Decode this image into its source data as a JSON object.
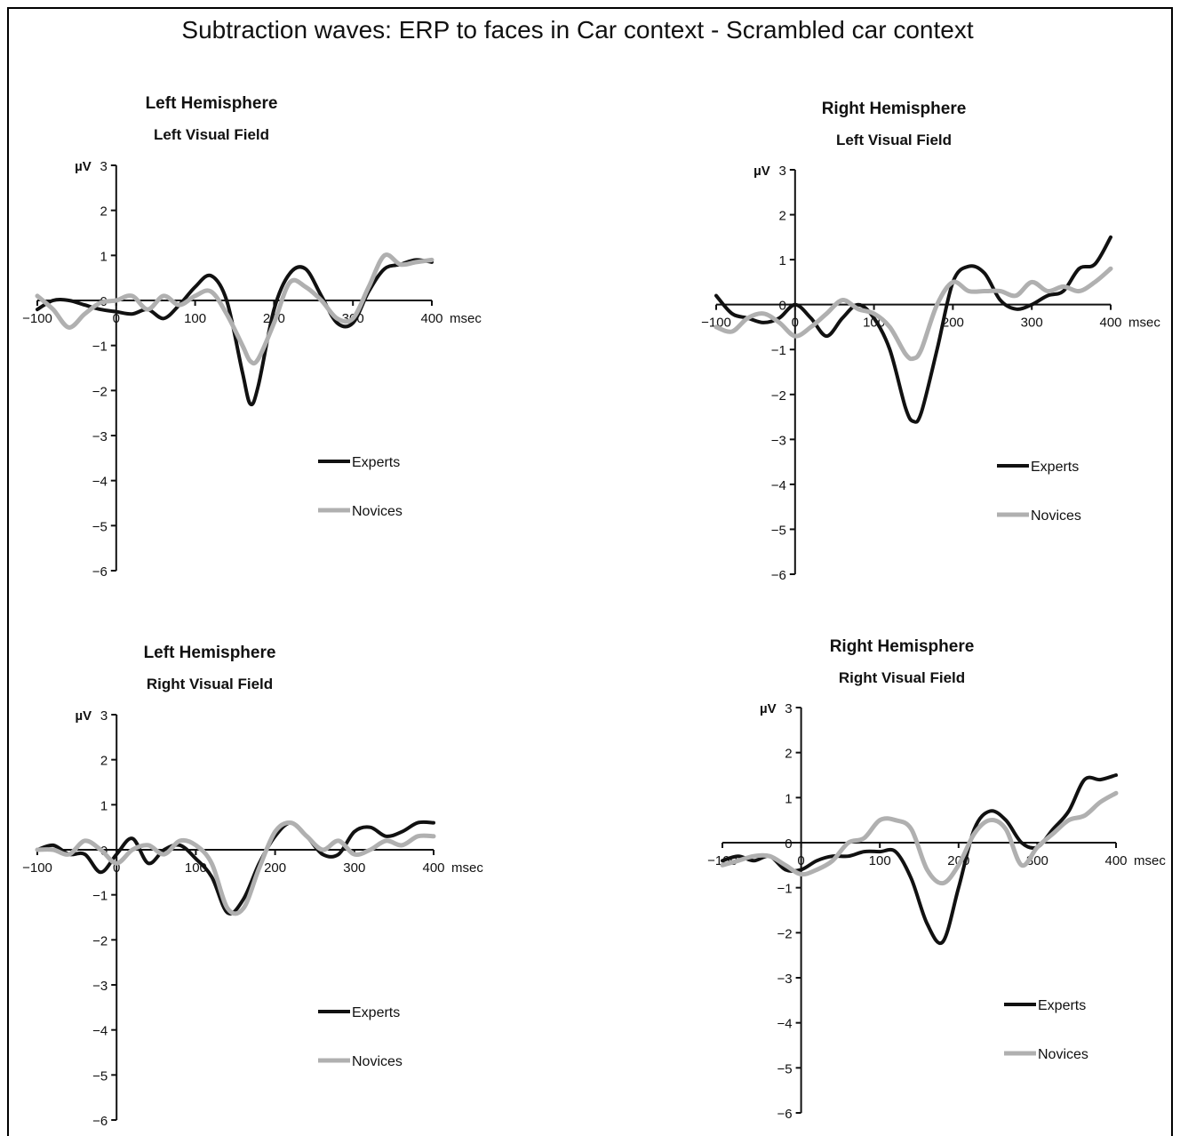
{
  "figure": {
    "title": "Subtraction waves: ERP to faces in Car context - Scrambled car context"
  },
  "chart_data": [
    {
      "type": "line",
      "title": "Left Hemisphere",
      "subtitle": "Left Visual Field",
      "ylabel": "µV",
      "xunit": "msec",
      "xlim": [
        -100,
        400
      ],
      "ylim": [
        -6,
        3
      ],
      "xticks": [
        "−100",
        "0",
        "100",
        "200",
        "300",
        "400"
      ],
      "yticks": [
        "3",
        "2",
        "1",
        "0",
        "−1",
        "−2",
        "−3",
        "−4",
        "−5",
        "−6"
      ],
      "legend": "bottom-right",
      "colors": {
        "Experts": "#111111",
        "Novices": "#b0b0b0"
      },
      "series": [
        {
          "name": "Experts",
          "x": [
            -100,
            -80,
            -60,
            -40,
            -20,
            0,
            20,
            40,
            60,
            80,
            100,
            120,
            140,
            160,
            170,
            180,
            200,
            220,
            240,
            260,
            280,
            300,
            320,
            340,
            360,
            380,
            400
          ],
          "y": [
            -0.2,
            0.0,
            0.0,
            -0.1,
            -0.2,
            -0.25,
            -0.3,
            -0.2,
            -0.4,
            -0.1,
            0.3,
            0.55,
            0.0,
            -1.6,
            -2.3,
            -1.9,
            -0.2,
            0.6,
            0.7,
            0.1,
            -0.5,
            -0.5,
            0.2,
            0.7,
            0.8,
            0.9,
            0.85
          ]
        },
        {
          "name": "Novices",
          "x": [
            -100,
            -80,
            -60,
            -40,
            -20,
            0,
            20,
            40,
            60,
            80,
            100,
            120,
            140,
            160,
            170,
            180,
            200,
            220,
            240,
            260,
            280,
            300,
            320,
            340,
            360,
            380,
            400
          ],
          "y": [
            0.1,
            -0.2,
            -0.6,
            -0.3,
            -0.05,
            0.0,
            0.1,
            -0.2,
            0.1,
            -0.1,
            0.1,
            0.2,
            -0.3,
            -1.0,
            -1.35,
            -1.3,
            -0.5,
            0.4,
            0.3,
            0.0,
            -0.4,
            -0.4,
            0.3,
            1.0,
            0.8,
            0.85,
            0.9
          ]
        }
      ]
    },
    {
      "type": "line",
      "title": "Right Hemisphere",
      "subtitle": "Left Visual Field",
      "ylabel": "µV",
      "xunit": "msec",
      "xlim": [
        -100,
        400
      ],
      "ylim": [
        -6,
        3
      ],
      "xticks": [
        "−100",
        "0",
        "100",
        "200",
        "300",
        "400"
      ],
      "yticks": [
        "3",
        "2",
        "1",
        "0",
        "−1",
        "−2",
        "−3",
        "−4",
        "−5",
        "−6"
      ],
      "legend": "bottom-right",
      "colors": {
        "Experts": "#111111",
        "Novices": "#b0b0b0"
      },
      "series": [
        {
          "name": "Experts",
          "x": [
            -100,
            -80,
            -60,
            -40,
            -20,
            0,
            20,
            40,
            60,
            80,
            100,
            120,
            140,
            150,
            160,
            180,
            200,
            220,
            240,
            260,
            280,
            300,
            320,
            340,
            360,
            380,
            400
          ],
          "y": [
            0.2,
            -0.2,
            -0.3,
            -0.4,
            -0.3,
            0.0,
            -0.3,
            -0.7,
            -0.3,
            0.0,
            -0.3,
            -1.0,
            -2.3,
            -2.6,
            -2.4,
            -1.0,
            0.5,
            0.85,
            0.7,
            0.1,
            -0.1,
            0.0,
            0.2,
            0.3,
            0.8,
            0.9,
            1.5
          ]
        },
        {
          "name": "Novices",
          "x": [
            -100,
            -80,
            -60,
            -40,
            -20,
            0,
            20,
            40,
            60,
            80,
            100,
            120,
            140,
            150,
            160,
            180,
            200,
            220,
            240,
            260,
            280,
            300,
            320,
            340,
            360,
            380,
            400
          ],
          "y": [
            -0.5,
            -0.6,
            -0.3,
            -0.2,
            -0.4,
            -0.7,
            -0.5,
            -0.2,
            0.1,
            -0.1,
            -0.2,
            -0.5,
            -1.1,
            -1.2,
            -1.0,
            0.0,
            0.5,
            0.3,
            0.3,
            0.3,
            0.2,
            0.5,
            0.3,
            0.4,
            0.3,
            0.5,
            0.8
          ]
        }
      ]
    },
    {
      "type": "line",
      "title": "Left Hemisphere",
      "subtitle": "Right Visual Field",
      "ylabel": "µV",
      "xunit": "msec",
      "xlim": [
        -100,
        400
      ],
      "ylim": [
        -6,
        3
      ],
      "xticks": [
        "−100",
        "0",
        "100",
        "200",
        "300",
        "400"
      ],
      "yticks": [
        "3",
        "2",
        "1",
        "0",
        "−1",
        "−2",
        "−3",
        "−4",
        "−5",
        "−6"
      ],
      "legend": "bottom-right",
      "colors": {
        "Experts": "#111111",
        "Novices": "#b0b0b0"
      },
      "series": [
        {
          "name": "Experts",
          "x": [
            -100,
            -80,
            -60,
            -40,
            -20,
            0,
            20,
            40,
            60,
            80,
            100,
            120,
            140,
            160,
            180,
            200,
            220,
            240,
            260,
            280,
            300,
            320,
            340,
            360,
            380,
            400
          ],
          "y": [
            0.0,
            0.1,
            -0.1,
            -0.1,
            -0.5,
            -0.1,
            0.25,
            -0.3,
            0.0,
            0.1,
            -0.2,
            -0.6,
            -1.4,
            -1.1,
            -0.3,
            0.3,
            0.6,
            0.3,
            -0.1,
            -0.1,
            0.4,
            0.5,
            0.3,
            0.4,
            0.6,
            0.6
          ]
        },
        {
          "name": "Novices",
          "x": [
            -100,
            -80,
            -60,
            -40,
            -20,
            0,
            20,
            40,
            60,
            80,
            100,
            120,
            140,
            160,
            180,
            200,
            220,
            240,
            260,
            280,
            300,
            320,
            340,
            360,
            380,
            400
          ],
          "y": [
            0.0,
            0.0,
            -0.1,
            0.2,
            0.0,
            -0.3,
            0.0,
            0.1,
            -0.1,
            0.2,
            0.1,
            -0.3,
            -1.3,
            -1.3,
            -0.4,
            0.4,
            0.6,
            0.3,
            0.0,
            0.2,
            -0.1,
            0.0,
            0.2,
            0.1,
            0.3,
            0.3
          ]
        }
      ]
    },
    {
      "type": "line",
      "title": "Right Hemisphere",
      "subtitle": "Right Visual Field",
      "ylabel": "µV",
      "xunit": "msec",
      "xlim": [
        -100,
        400
      ],
      "ylim": [
        -6,
        3
      ],
      "xticks": [
        "−100",
        "0",
        "100",
        "200",
        "300",
        "400"
      ],
      "yticks": [
        "3",
        "2",
        "1",
        "0",
        "−1",
        "−2",
        "−3",
        "−4",
        "−5",
        "−6"
      ],
      "legend": "bottom-right",
      "colors": {
        "Experts": "#111111",
        "Novices": "#b0b0b0"
      },
      "series": [
        {
          "name": "Experts",
          "x": [
            -100,
            -80,
            -60,
            -40,
            -20,
            0,
            20,
            40,
            60,
            80,
            100,
            120,
            140,
            160,
            180,
            200,
            220,
            240,
            260,
            280,
            300,
            320,
            340,
            360,
            380,
            400
          ],
          "y": [
            -0.4,
            -0.3,
            -0.4,
            -0.3,
            -0.6,
            -0.6,
            -0.4,
            -0.3,
            -0.3,
            -0.2,
            -0.2,
            -0.2,
            -0.8,
            -1.8,
            -2.2,
            -1.0,
            0.3,
            0.7,
            0.5,
            0.0,
            -0.1,
            0.3,
            0.7,
            1.4,
            1.4,
            1.5
          ]
        },
        {
          "name": "Novices",
          "x": [
            -100,
            -80,
            -60,
            -40,
            -20,
            0,
            20,
            40,
            60,
            80,
            100,
            120,
            140,
            160,
            180,
            200,
            220,
            240,
            260,
            280,
            300,
            320,
            340,
            360,
            380,
            400
          ],
          "y": [
            -0.5,
            -0.4,
            -0.3,
            -0.3,
            -0.5,
            -0.7,
            -0.6,
            -0.4,
            0.0,
            0.1,
            0.5,
            0.5,
            0.3,
            -0.6,
            -0.9,
            -0.5,
            0.2,
            0.5,
            0.3,
            -0.5,
            -0.1,
            0.2,
            0.5,
            0.6,
            0.9,
            1.1
          ]
        }
      ]
    }
  ]
}
